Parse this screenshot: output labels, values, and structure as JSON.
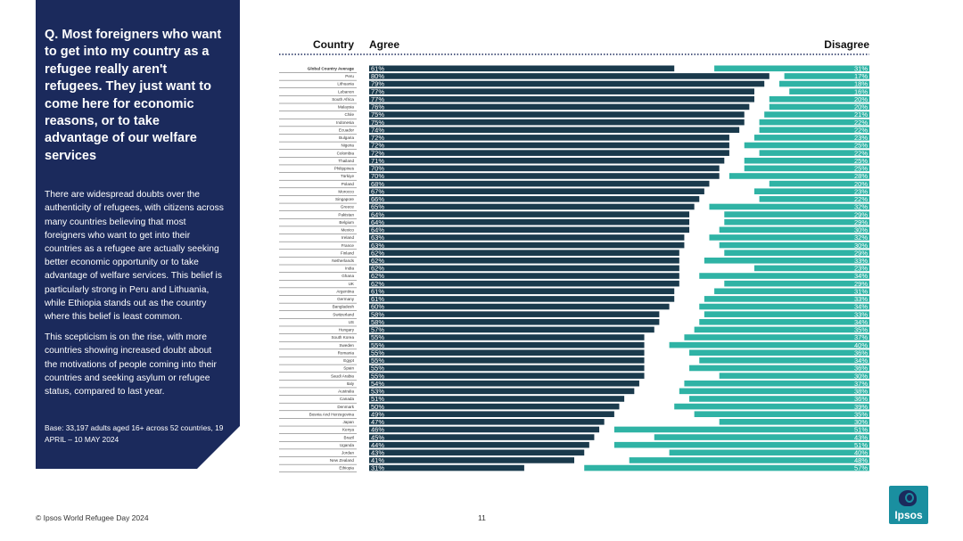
{
  "panel": {
    "question": "Q. Most foreigners who want to get into my country as a refugee really aren't refugees. They just want to come here for economic reasons, or to take advantage of our welfare services",
    "paragraph1": "There are widespread doubts over the authenticity of refugees, with citizens across many countries believing that most foreigners who want to get into their countries as a refugee are actually seeking better economic opportunity or to take advantage of welfare services. This belief is particularly strong in Peru and Lithuania, while Ethiopia stands out as the country where this belief is least common.",
    "paragraph2": "This scepticism is on the rise, with more countries showing increased doubt about the motivations of people coming into their countries and seeking asylum or refugee status, compared to last year.",
    "base": "Base: 33,197 adults aged 16+ across 52 countries, 19 APRIL – 10 MAY 2024"
  },
  "footer": {
    "source": "© Ipsos World Refugee Day 2024",
    "page": "11",
    "logo_text": "Ipsos"
  },
  "colors": {
    "panel": "#1b2a5c",
    "agree": "#1a3a4c",
    "disagree": "#2fb3a5",
    "neutral": "#ffffff"
  },
  "chart_data": {
    "type": "bar",
    "orientation": "horizontal-diverging",
    "columns": {
      "country": "Country",
      "agree": "Agree",
      "disagree": "Disagree"
    },
    "categories": [
      "Global Country Average",
      "Peru",
      "Lithuania",
      "Lebanon",
      "South Africa",
      "Malaysia",
      "Chile",
      "Indonesia",
      "Ecuador",
      "Bulgaria",
      "Nigeria",
      "Colombia",
      "Thailand",
      "Philippines",
      "Türkiye",
      "Poland",
      "Morocco",
      "Singapore",
      "Greece",
      "Pakistan",
      "Belgium",
      "Mexico",
      "Ireland",
      "France",
      "Finland",
      "Netherlands",
      "India",
      "Ghana",
      "UK",
      "Argentina",
      "Germany",
      "Bangladesh",
      "Switzerland",
      "US",
      "Hungary",
      "South Korea",
      "Sweden",
      "Romania",
      "Egypt",
      "Spain",
      "Saudi Arabia",
      "Italy",
      "Australia",
      "Canada",
      "Denmark",
      "Bosnia And Herzegovina",
      "Japan",
      "Kenya",
      "Brazil",
      "Uganda",
      "Jordan",
      "New Zealand",
      "Ethiopia"
    ],
    "series": [
      {
        "name": "Agree",
        "values": [
          61,
          80,
          79,
          77,
          77,
          76,
          75,
          75,
          74,
          72,
          72,
          72,
          71,
          70,
          70,
          68,
          67,
          66,
          65,
          64,
          64,
          64,
          63,
          63,
          62,
          62,
          62,
          62,
          62,
          61,
          61,
          60,
          58,
          58,
          57,
          55,
          55,
          55,
          55,
          55,
          55,
          54,
          53,
          51,
          50,
          49,
          47,
          46,
          45,
          44,
          43,
          41,
          31
        ]
      },
      {
        "name": "Disagree",
        "values": [
          31,
          17,
          18,
          16,
          20,
          20,
          21,
          22,
          22,
          23,
          25,
          22,
          25,
          25,
          28,
          20,
          23,
          22,
          32,
          29,
          29,
          30,
          32,
          30,
          29,
          33,
          23,
          34,
          29,
          31,
          33,
          34,
          33,
          34,
          35,
          37,
          40,
          36,
          34,
          36,
          30,
          37,
          38,
          36,
          39,
          35,
          30,
          51,
          43,
          51,
          40,
          48,
          57
        ]
      }
    ]
  }
}
